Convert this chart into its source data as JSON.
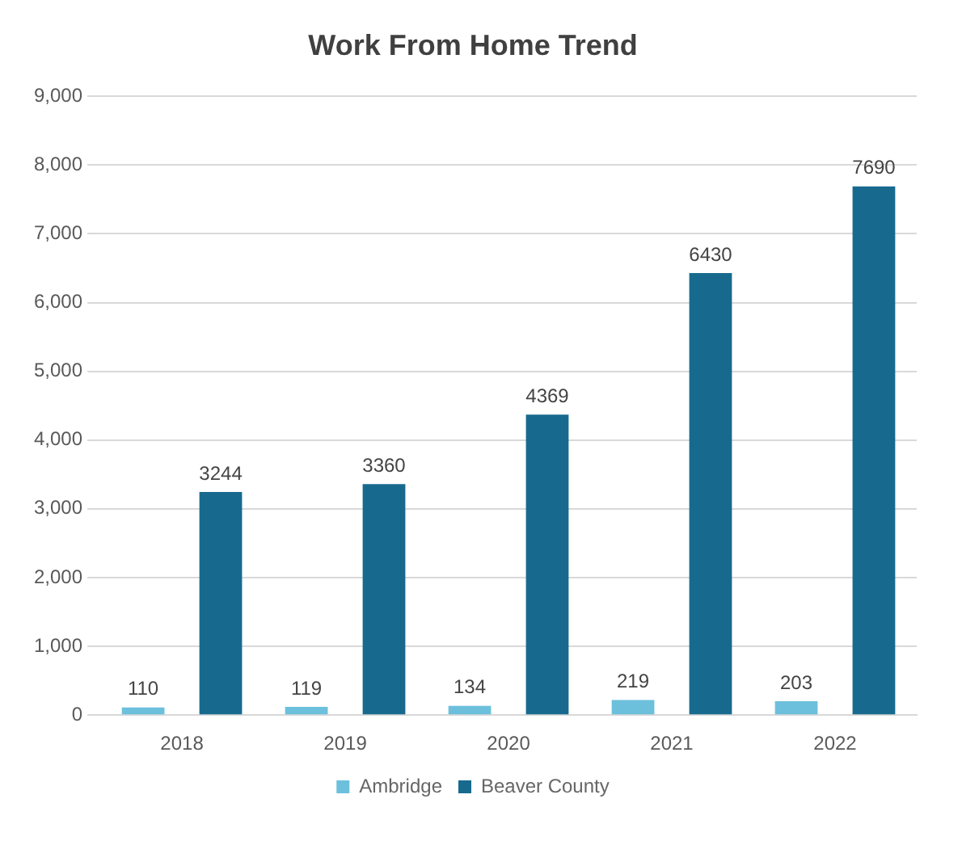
{
  "chart_data": {
    "type": "bar",
    "title": "Work From Home Trend",
    "categories": [
      "2018",
      "2019",
      "2020",
      "2021",
      "2022"
    ],
    "series": [
      {
        "name": "Ambridge",
        "color": "#6cc0dc",
        "values": [
          110,
          119,
          134,
          219,
          203
        ]
      },
      {
        "name": "Beaver County",
        "color": "#176a8e",
        "values": [
          3244,
          3360,
          4369,
          6430,
          7690
        ]
      }
    ],
    "ylim": [
      0,
      9000
    ],
    "yticks": [
      0,
      {
        "value": 1000,
        "label": "1,000"
      },
      {
        "value": 2000,
        "label": "2,000"
      },
      {
        "value": 3000,
        "label": "3,000"
      },
      {
        "value": 4000,
        "label": "4,000"
      },
      {
        "value": 5000,
        "label": "5,000"
      },
      {
        "value": 6000,
        "label": "6,000"
      },
      {
        "value": 7000,
        "label": "7,000"
      },
      {
        "value": 8000,
        "label": "8,000"
      },
      {
        "value": 9000,
        "label": "9,000"
      }
    ],
    "grid": "y",
    "legend": "bottom",
    "data_labels": true
  }
}
